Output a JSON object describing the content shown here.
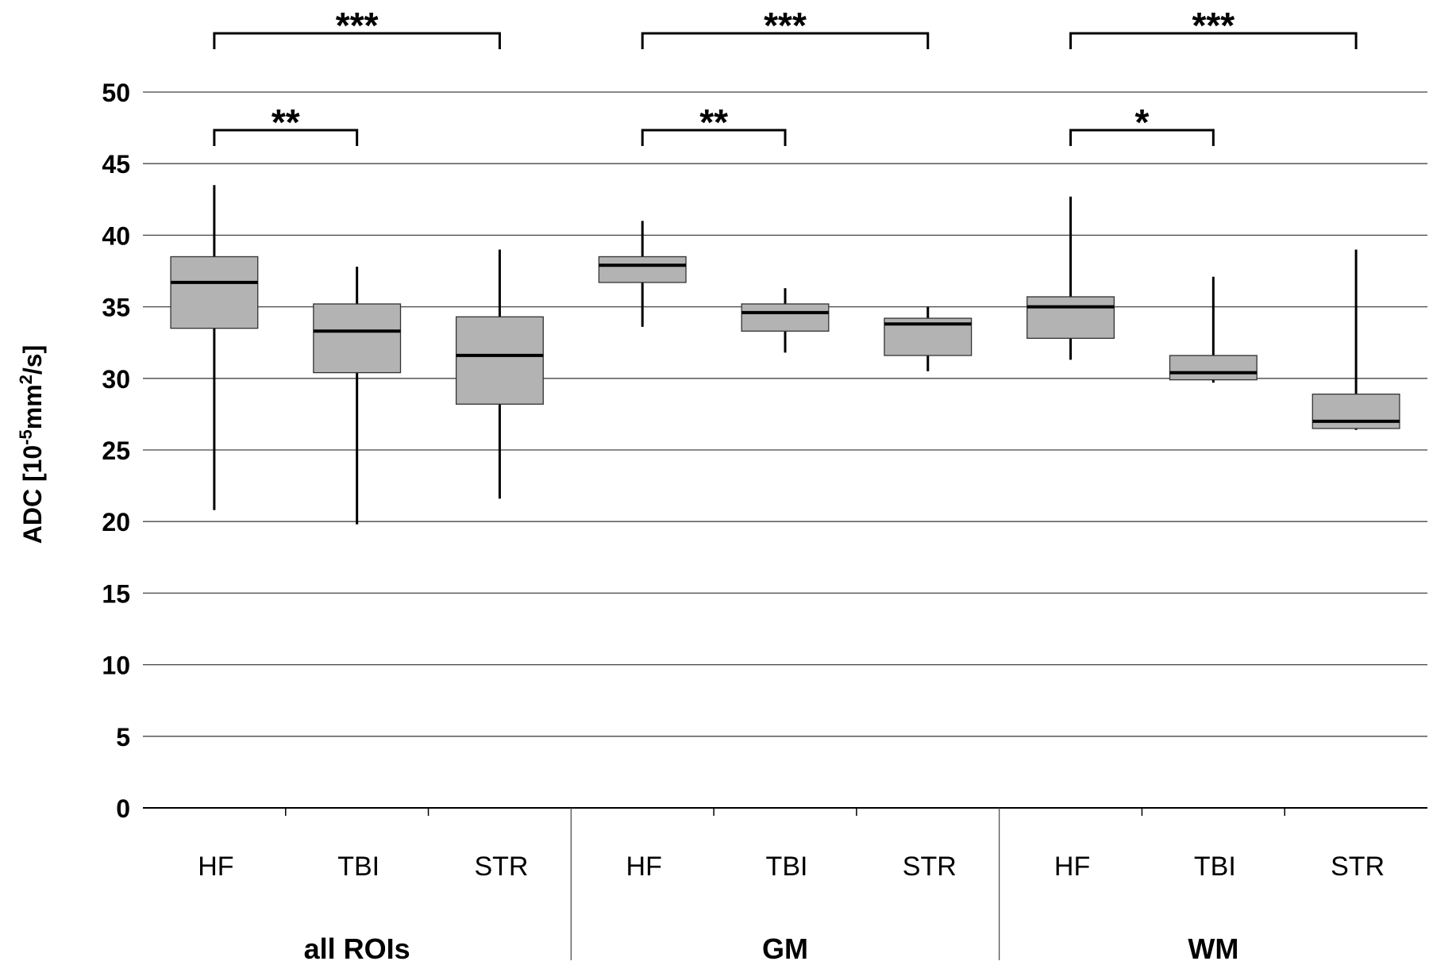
{
  "chart_data": {
    "type": "box",
    "ylabel": {
      "prefix": "ADC [10",
      "exp1": "-5",
      "mid": "mm",
      "exp2": "2",
      "suffix": "/s]"
    },
    "ylim": [
      0,
      50
    ],
    "yticks": [
      0,
      5,
      10,
      15,
      20,
      25,
      30,
      35,
      40,
      45,
      50
    ],
    "grid": true,
    "colors": {
      "box_fill": "#b3b3b3",
      "line": "#000000",
      "grid": "#444444"
    },
    "groups": [
      {
        "name": "all ROIs",
        "boxes": [
          {
            "category": "HF",
            "whisker_low": 20.8,
            "q1": 33.5,
            "median": 36.7,
            "q3": 38.5,
            "whisker_high": 43.5
          },
          {
            "category": "TBI",
            "whisker_low": 19.8,
            "q1": 30.4,
            "median": 33.3,
            "q3": 35.2,
            "whisker_high": 37.8
          },
          {
            "category": "STR",
            "whisker_low": 21.6,
            "q1": 28.2,
            "median": 31.6,
            "q3": 34.3,
            "whisker_high": 39.0
          }
        ],
        "significance": [
          {
            "from": "HF",
            "to": "STR",
            "label": "***"
          },
          {
            "from": "HF",
            "to": "TBI",
            "label": "**"
          }
        ]
      },
      {
        "name": "GM",
        "boxes": [
          {
            "category": "HF",
            "whisker_low": 33.6,
            "q1": 36.7,
            "median": 37.9,
            "q3": 38.5,
            "whisker_high": 41.0
          },
          {
            "category": "TBI",
            "whisker_low": 31.8,
            "q1": 33.3,
            "median": 34.6,
            "q3": 35.2,
            "whisker_high": 36.3
          },
          {
            "category": "STR",
            "whisker_low": 30.5,
            "q1": 31.6,
            "median": 33.8,
            "q3": 34.2,
            "whisker_high": 35.0
          }
        ],
        "significance": [
          {
            "from": "HF",
            "to": "STR",
            "label": "***"
          },
          {
            "from": "HF",
            "to": "TBI",
            "label": "**"
          }
        ]
      },
      {
        "name": "WM",
        "boxes": [
          {
            "category": "HF",
            "whisker_low": 31.3,
            "q1": 32.8,
            "median": 35.0,
            "q3": 35.7,
            "whisker_high": 42.7
          },
          {
            "category": "TBI",
            "whisker_low": 29.7,
            "q1": 29.9,
            "median": 30.4,
            "q3": 31.6,
            "whisker_high": 37.1
          },
          {
            "category": "STR",
            "whisker_low": 26.4,
            "q1": 26.5,
            "median": 27.0,
            "q3": 28.9,
            "whisker_high": 39.0
          }
        ],
        "significance": [
          {
            "from": "HF",
            "to": "STR",
            "label": "***"
          },
          {
            "from": "HF",
            "to": "TBI",
            "label": "*"
          }
        ]
      }
    ]
  }
}
